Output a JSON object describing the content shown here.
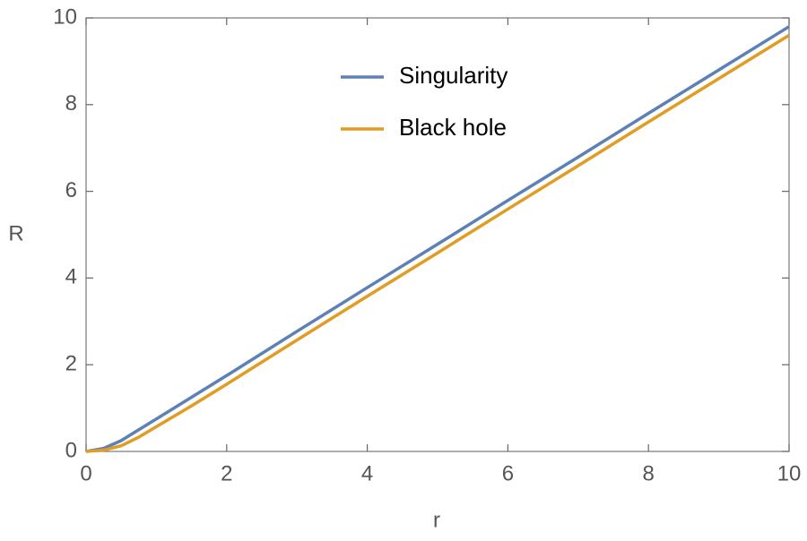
{
  "chart_data": {
    "type": "line",
    "x_label": "r",
    "y_label": "R",
    "x": [
      0,
      0.25,
      0.5,
      0.75,
      1,
      1.5,
      2,
      3,
      4,
      5,
      6,
      7,
      8,
      9,
      10
    ],
    "series": [
      {
        "name": "Singularity",
        "color": "#5e81b5",
        "values": [
          0,
          0.07,
          0.25,
          0.5,
          0.75,
          1.25,
          1.75,
          2.77,
          3.78,
          4.78,
          5.79,
          6.79,
          7.8,
          8.8,
          9.8
        ]
      },
      {
        "name": "Black hole",
        "color": "#e19c24",
        "values": [
          0,
          0.03,
          0.13,
          0.33,
          0.57,
          1.05,
          1.55,
          2.57,
          3.58,
          4.58,
          5.59,
          6.59,
          7.6,
          8.6,
          9.6
        ]
      }
    ],
    "xlim": [
      0,
      10
    ],
    "ylim": [
      0,
      10
    ],
    "xticks": [
      0,
      2,
      4,
      6,
      8,
      10
    ],
    "yticks": [
      0,
      2,
      4,
      6,
      8,
      10
    ],
    "grid": false,
    "legend": "upper center"
  }
}
